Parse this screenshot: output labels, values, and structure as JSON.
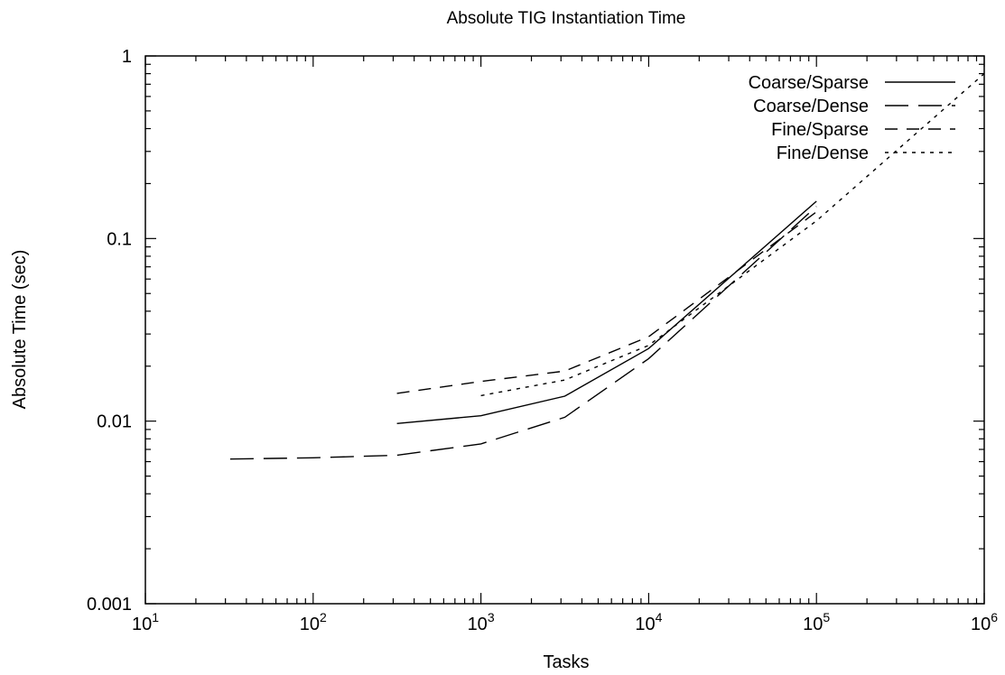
{
  "chart_data": {
    "type": "line",
    "title": "Absolute TIG Instantiation Time",
    "xlabel": "Tasks",
    "ylabel": "Absolute Time (sec)",
    "xscale": "log",
    "yscale": "log",
    "xlim": [
      10,
      1000000
    ],
    "ylim": [
      0.001,
      1
    ],
    "x_ticks": [
      {
        "value": 10,
        "base": "10",
        "exp": "1"
      },
      {
        "value": 100,
        "base": "10",
        "exp": "2"
      },
      {
        "value": 1000,
        "base": "10",
        "exp": "3"
      },
      {
        "value": 10000,
        "base": "10",
        "exp": "4"
      },
      {
        "value": 100000,
        "base": "10",
        "exp": "5"
      },
      {
        "value": 1000000,
        "base": "10",
        "exp": "6"
      }
    ],
    "y_ticks": [
      {
        "value": 0.001,
        "label": "0.001"
      },
      {
        "value": 0.01,
        "label": "0.01"
      },
      {
        "value": 0.1,
        "label": "0.1"
      },
      {
        "value": 1,
        "label": "1"
      }
    ],
    "grid": false,
    "legend_position": "top-right",
    "series": [
      {
        "name": "Coarse/Sparse",
        "dash": "solid",
        "points": [
          [
            316,
            0.0097
          ],
          [
            1000,
            0.0107
          ],
          [
            3162,
            0.0137
          ],
          [
            10000,
            0.025
          ],
          [
            100000,
            0.16
          ]
        ]
      },
      {
        "name": "Coarse/Dense",
        "dash": "long",
        "points": [
          [
            32,
            0.0062
          ],
          [
            100,
            0.0063
          ],
          [
            316,
            0.0065
          ],
          [
            1000,
            0.0075
          ],
          [
            3162,
            0.0105
          ],
          [
            10000,
            0.022
          ],
          [
            100000,
            0.15
          ]
        ]
      },
      {
        "name": "Fine/Sparse",
        "dash": "medium",
        "points": [
          [
            316,
            0.0142
          ],
          [
            1000,
            0.0165
          ],
          [
            3162,
            0.0188
          ],
          [
            10000,
            0.029
          ],
          [
            100000,
            0.14
          ]
        ]
      },
      {
        "name": "Fine/Dense",
        "dash": "dotted",
        "points": [
          [
            1000,
            0.0138
          ],
          [
            3162,
            0.0168
          ],
          [
            10000,
            0.026
          ],
          [
            100000,
            0.125
          ],
          [
            1000000,
            0.8
          ]
        ]
      }
    ]
  }
}
